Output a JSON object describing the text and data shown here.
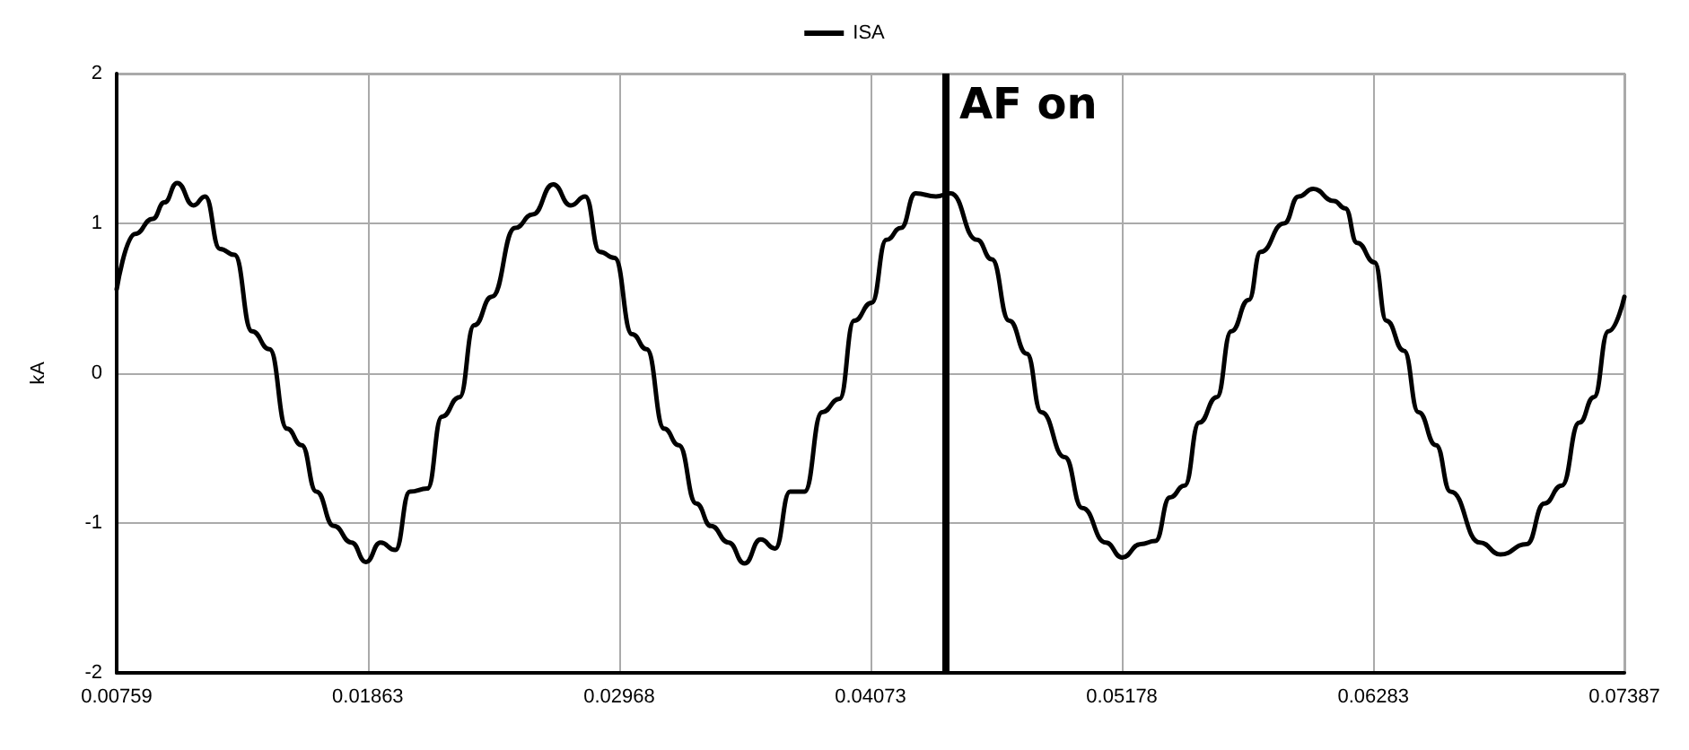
{
  "chart_data": {
    "type": "line",
    "ylabel": "kA",
    "legend": "top",
    "grid": true,
    "marker": "none",
    "line_style": "solid",
    "xlim": [
      0.00759,
      0.07387
    ],
    "xticks": [
      0.00759,
      0.01863,
      0.02968,
      0.04073,
      0.05178,
      0.06283,
      0.07387
    ],
    "ylim": [
      -2,
      2
    ],
    "yticks": [
      -2,
      -1,
      0,
      1,
      2
    ],
    "ref_lines": [
      {
        "axis": "x",
        "value": 0.044,
        "label": "AF on",
        "color": "#000000",
        "line_style": "solid"
      }
    ],
    "x": [
      0.00759,
      0.0084,
      0.00917,
      0.00969,
      0.01025,
      0.01097,
      0.01148,
      0.01213,
      0.01277,
      0.01354,
      0.01431,
      0.01508,
      0.01572,
      0.01637,
      0.01714,
      0.01791,
      0.01855,
      0.01919,
      0.01984,
      0.02048,
      0.02125,
      0.02189,
      0.02266,
      0.02331,
      0.02408,
      0.02511,
      0.02588,
      0.02678,
      0.02755,
      0.02819,
      0.02883,
      0.02948,
      0.03025,
      0.03089,
      0.03166,
      0.0323,
      0.03307,
      0.03372,
      0.03449,
      0.03519,
      0.0359,
      0.03654,
      0.03719,
      0.03783,
      0.0386,
      0.03937,
      0.04001,
      0.04078,
      0.04143,
      0.04207,
      0.04271,
      0.04361,
      0.04425,
      0.04541,
      0.04606,
      0.04683,
      0.0476,
      0.04824,
      0.04927,
      0.05004,
      0.05107,
      0.05179,
      0.05261,
      0.05325,
      0.05389,
      0.05454,
      0.05518,
      0.05595,
      0.05659,
      0.05736,
      0.05788,
      0.05891,
      0.05955,
      0.06019,
      0.0611,
      0.0616,
      0.06212,
      0.06289,
      0.06341,
      0.06418,
      0.06482,
      0.06559,
      0.06623,
      0.06752,
      0.06842,
      0.06958,
      0.07035,
      0.07112,
      0.07189,
      0.07253,
      0.07317,
      0.07387
    ],
    "series": [
      {
        "name": "ISA",
        "color": "#000000",
        "values": [
          0.56,
          0.93,
          1.03,
          1.14,
          1.27,
          1.12,
          1.18,
          0.83,
          0.79,
          0.28,
          0.16,
          -0.37,
          -0.48,
          -0.79,
          -1.02,
          -1.13,
          -1.26,
          -1.13,
          -1.18,
          -0.79,
          -0.77,
          -0.29,
          -0.16,
          0.32,
          0.51,
          0.97,
          1.06,
          1.26,
          1.12,
          1.18,
          0.81,
          0.77,
          0.26,
          0.16,
          -0.37,
          -0.48,
          -0.87,
          -1.02,
          -1.13,
          -1.27,
          -1.11,
          -1.17,
          -0.79,
          -0.79,
          -0.26,
          -0.17,
          0.35,
          0.47,
          0.89,
          0.97,
          1.2,
          1.18,
          1.2,
          0.89,
          0.76,
          0.35,
          0.13,
          -0.26,
          -0.56,
          -0.9,
          -1.13,
          -1.23,
          -1.14,
          -1.12,
          -0.83,
          -0.75,
          -0.33,
          -0.16,
          0.28,
          0.49,
          0.81,
          1.0,
          1.18,
          1.23,
          1.15,
          1.1,
          0.87,
          0.74,
          0.35,
          0.15,
          -0.26,
          -0.48,
          -0.79,
          -1.13,
          -1.21,
          -1.14,
          -0.87,
          -0.75,
          -0.33,
          -0.16,
          0.28,
          0.51
        ]
      }
    ]
  }
}
